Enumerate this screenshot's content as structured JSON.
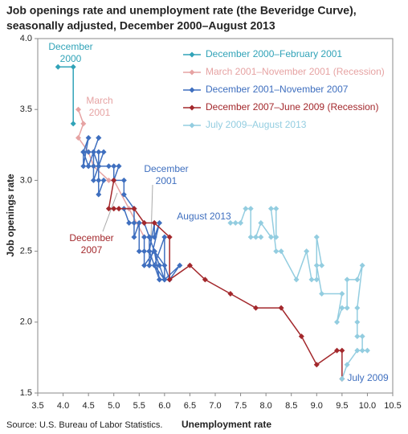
{
  "chart_data": {
    "type": "line",
    "title": [
      "Job openings rate and unemployment rate (the Beveridge Curve),",
      "seasonally adjusted, December 2000–August 2013"
    ],
    "x_label": "Unemployment rate",
    "y_label": "Job openings rate",
    "source": "Source: U.S. Bureau of Labor Statistics.",
    "xlim": [
      3.5,
      10.5
    ],
    "xticks": [
      3.5,
      {
        "value": 4,
        "label": "4.0"
      },
      4.5,
      {
        "value": 5,
        "label": "5.0"
      },
      5.5,
      {
        "value": 6,
        "label": "6.0"
      },
      6.5,
      {
        "value": 7,
        "label": "7.0"
      },
      7.5,
      {
        "value": 8,
        "label": "8.0"
      },
      8.5,
      {
        "value": 9,
        "label": "9.0"
      },
      9.5,
      {
        "value": 10,
        "label": "10.0"
      },
      10.5
    ],
    "ylim": [
      1.5,
      4.0
    ],
    "yticks": [
      1.5,
      {
        "value": 2,
        "label": "2.0"
      },
      2.5,
      {
        "value": 3,
        "label": "3.0"
      },
      3.5,
      {
        "value": 4,
        "label": "4.0"
      }
    ],
    "legend": "upper right",
    "series": [
      {
        "name": "December  2000–February 2001",
        "color": "#31a3b8",
        "x": [
          3.9,
          4.2,
          4.2
        ],
        "values": [
          3.8,
          3.8,
          3.4
        ]
      },
      {
        "name": "March 2001–November 2001 (Recession)",
        "color": "#e6a3a3",
        "x": [
          4.3,
          4.4,
          4.3,
          4.5,
          4.6,
          4.9,
          5.0,
          5.3,
          5.6
        ],
        "values": [
          3.5,
          3.4,
          3.3,
          3.2,
          3.1,
          3.0,
          3.0,
          2.8,
          2.6
        ]
      },
      {
        "name": "December 2001–November 2007",
        "color": "#3f6fbf",
        "x": [
          5.7,
          5.7,
          5.7,
          5.9,
          5.8,
          5.8,
          5.7,
          5.7,
          5.7,
          5.9,
          6.0,
          5.8,
          5.9,
          6.0,
          6.0,
          5.8,
          6.0,
          6.3,
          6.1,
          6.1,
          6.0,
          5.8,
          5.9,
          5.7,
          5.7,
          5.6,
          5.8,
          5.6,
          5.6,
          5.6,
          5.5,
          5.5,
          5.4,
          5.4,
          5.4,
          5.3,
          5.2,
          5.4,
          5.2,
          5.2,
          5.0,
          5.0,
          5.0,
          5.1,
          4.9,
          4.7,
          4.8,
          4.7,
          4.7,
          4.6,
          4.6,
          4.7,
          4.7,
          4.5,
          4.4,
          4.5,
          4.4,
          4.4,
          4.5,
          4.4,
          4.5,
          4.6,
          4.6,
          4.7,
          4.7,
          4.7,
          4.8
        ],
        "values": [
          2.6,
          2.5,
          2.4,
          2.7,
          2.6,
          2.7,
          2.5,
          2.4,
          2.6,
          2.4,
          2.3,
          2.5,
          2.3,
          2.3,
          2.6,
          2.4,
          2.3,
          2.4,
          2.3,
          2.3,
          2.4,
          2.5,
          2.3,
          2.5,
          2.6,
          2.7,
          2.5,
          2.4,
          2.6,
          2.5,
          2.5,
          2.7,
          2.6,
          2.8,
          2.7,
          2.7,
          2.8,
          2.8,
          2.9,
          3.0,
          3.0,
          3.1,
          3.0,
          3.1,
          3.1,
          3.1,
          3.2,
          3.2,
          3.1,
          3.0,
          3.2,
          3.3,
          3.3,
          3.1,
          3.2,
          3.2,
          3.2,
          3.1,
          3.3,
          3.2,
          3.1,
          3.1,
          3.2,
          3.1,
          3.0,
          2.9,
          3.0
        ]
      },
      {
        "name": "December  2007–June 2009 (Recession)",
        "color": "#a3282c",
        "x": [
          5.0,
          4.9,
          5.1,
          5.0,
          5.4,
          5.6,
          5.8,
          6.1,
          6.1,
          6.5,
          6.8,
          7.3,
          7.8,
          8.3,
          8.7,
          9.0,
          9.4,
          9.5,
          9.5
        ],
        "values": [
          3.0,
          2.8,
          2.8,
          2.8,
          2.8,
          2.7,
          2.7,
          2.6,
          2.3,
          2.4,
          2.3,
          2.2,
          2.1,
          2.1,
          1.9,
          1.7,
          1.8,
          1.8,
          1.6
        ]
      },
      {
        "name": "July 2009–August 2013",
        "color": "#93cde0",
        "x": [
          9.5,
          9.6,
          9.8,
          10.0,
          9.9,
          9.9,
          9.8,
          9.8,
          9.8,
          9.9,
          9.8,
          9.6,
          9.6,
          9.5,
          9.4,
          9.5,
          9.1,
          9.0,
          9.1,
          9.0,
          9.0,
          8.9,
          8.8,
          8.6,
          8.3,
          8.2,
          8.1,
          8.2,
          8.2,
          8.1,
          7.9,
          7.8,
          7.9,
          7.7,
          7.7,
          7.6,
          7.5,
          7.4,
          7.3
        ],
        "values": [
          1.6,
          1.7,
          1.8,
          1.8,
          1.8,
          1.9,
          1.9,
          2.0,
          2.1,
          2.4,
          2.3,
          2.3,
          2.1,
          2.1,
          2.0,
          2.2,
          2.2,
          2.4,
          2.4,
          2.6,
          2.3,
          2.3,
          2.5,
          2.3,
          2.5,
          2.5,
          2.8,
          2.8,
          2.6,
          2.6,
          2.7,
          2.6,
          2.6,
          2.6,
          2.8,
          2.8,
          2.7,
          2.7,
          2.7
        ]
      }
    ],
    "annotations": [
      {
        "lines": [
          "December",
          "2000"
        ],
        "color": "#31a3b8"
      },
      {
        "lines": [
          "March",
          "2001"
        ],
        "color": "#e6a3a3"
      },
      {
        "lines": [
          "December",
          "2001"
        ],
        "color": "#3f6fbf"
      },
      {
        "lines": [
          "December",
          "2007"
        ],
        "color": "#a3282c"
      },
      {
        "lines": [
          "August 2013"
        ],
        "color": "#3f6fbf"
      },
      {
        "lines": [
          "July 2009"
        ],
        "color": "#3f6fbf"
      }
    ]
  }
}
